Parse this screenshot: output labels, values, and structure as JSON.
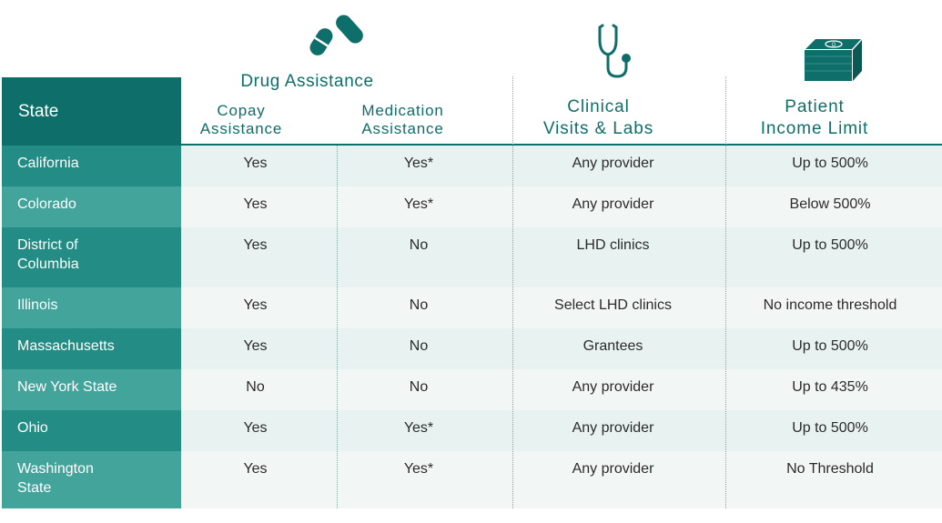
{
  "header": {
    "state_label": "State",
    "group_title": "Drug Assistance",
    "copay_label": [
      "Copay",
      "Assistance"
    ],
    "medication_label": [
      "Medication",
      "Assistance"
    ],
    "clinical_label": [
      "Clinical",
      "Visits & Labs"
    ],
    "income_label": [
      "Patient",
      "Income Limit"
    ]
  },
  "icons": [
    "pill-icon",
    "stethoscope-icon",
    "money-stack-icon"
  ],
  "colors": {
    "accent": "#0e6e6a",
    "state_cell_dark": "#238c85",
    "state_cell_light": "#43a49c",
    "row_bg_light": "#e8f2f1",
    "row_bg_lighter": "#f2f7f6"
  },
  "rows": [
    {
      "state": [
        "California"
      ],
      "copay": "Yes",
      "medication": "Yes*",
      "clinical": "Any provider",
      "income": "Up to 500%"
    },
    {
      "state": [
        "Colorado"
      ],
      "copay": "Yes",
      "medication": "Yes*",
      "clinical": "Any provider",
      "income": "Below 500%"
    },
    {
      "state": [
        "District of",
        "Columbia"
      ],
      "copay": "Yes",
      "medication": "No",
      "clinical": "LHD clinics",
      "income": "Up to 500%"
    },
    {
      "state": [
        "Illinois"
      ],
      "copay": "Yes",
      "medication": "No",
      "clinical": "Select LHD clinics",
      "income": "No income threshold"
    },
    {
      "state": [
        "Massachusetts"
      ],
      "copay": "Yes",
      "medication": "No",
      "clinical": "Grantees",
      "income": "Up to 500%"
    },
    {
      "state": [
        "New York State"
      ],
      "copay": "No",
      "medication": "No",
      "clinical": "Any provider",
      "income": "Up to 435%"
    },
    {
      "state": [
        "Ohio"
      ],
      "copay": "Yes",
      "medication": "Yes*",
      "clinical": "Any provider",
      "income": "Up to 500%"
    },
    {
      "state": [
        "Washington",
        "State"
      ],
      "copay": "Yes",
      "medication": "Yes*",
      "clinical": "Any provider",
      "income": "No Threshold"
    }
  ]
}
